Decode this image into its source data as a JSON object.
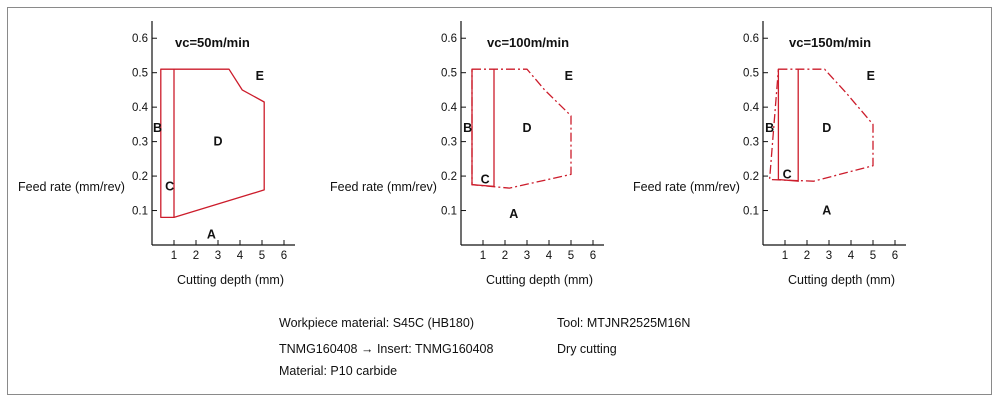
{
  "chart_data": [
    {
      "type": "area",
      "title": "vc=50m/min",
      "xlabel": "Cutting depth (mm)",
      "ylabel": "Feed rate (mm/rev)",
      "xlim": [
        0,
        6.5
      ],
      "ylim": [
        0,
        0.65
      ],
      "xticks": [
        "1",
        "2",
        "3",
        "4",
        "5",
        "6"
      ],
      "yticks": [
        "0.1",
        "0.2",
        "0.3",
        "0.4",
        "0.5",
        "0.6"
      ],
      "line_style": "solid",
      "boundary_outer": [
        [
          0.4,
          0.08
        ],
        [
          0.4,
          0.51
        ],
        [
          3.5,
          0.51
        ],
        [
          4.1,
          0.45
        ],
        [
          5.1,
          0.415
        ],
        [
          5.1,
          0.16
        ],
        [
          1.0,
          0.08
        ]
      ],
      "boundary_inner": [
        [
          1.0,
          0.08
        ],
        [
          1.0,
          0.51
        ]
      ],
      "region_labels": [
        {
          "text": "B",
          "x": 0.25,
          "y": 0.34
        },
        {
          "text": "C",
          "x": 0.8,
          "y": 0.17
        },
        {
          "text": "D",
          "x": 3.0,
          "y": 0.3
        },
        {
          "text": "E",
          "x": 4.9,
          "y": 0.49
        },
        {
          "text": "A",
          "x": 2.7,
          "y": 0.03
        }
      ]
    },
    {
      "type": "area",
      "title": "vc=100m/min",
      "xlabel": "Cutting depth (mm)",
      "ylabel": "Feed rate (mm/rev)",
      "xlim": [
        0,
        6.5
      ],
      "ylim": [
        0,
        0.65
      ],
      "xticks": [
        "1",
        "2",
        "3",
        "4",
        "5",
        "6"
      ],
      "yticks": [
        "0.1",
        "0.2",
        "0.3",
        "0.4",
        "0.5",
        "0.6"
      ],
      "line_style": "dash-dot",
      "boundary_outer": [
        [
          0.5,
          0.51
        ],
        [
          3.0,
          0.51
        ],
        [
          3.8,
          0.45
        ],
        [
          5.0,
          0.375
        ],
        [
          5.0,
          0.205
        ],
        [
          2.2,
          0.165
        ],
        [
          0.5,
          0.175
        ]
      ],
      "boundary_inner": [
        [
          0.5,
          0.51
        ],
        [
          0.5,
          0.175
        ],
        [
          1.5,
          0.17
        ],
        [
          1.5,
          0.51
        ]
      ],
      "region_labels": [
        {
          "text": "B",
          "x": 0.3,
          "y": 0.34
        },
        {
          "text": "C",
          "x": 1.1,
          "y": 0.19
        },
        {
          "text": "D",
          "x": 3.0,
          "y": 0.34
        },
        {
          "text": "E",
          "x": 4.9,
          "y": 0.49
        },
        {
          "text": "A",
          "x": 2.4,
          "y": 0.09
        }
      ]
    },
    {
      "type": "area",
      "title": "vc=150m/min",
      "xlabel": "Cutting depth (mm)",
      "ylabel": "Feed rate (mm/rev)",
      "xlim": [
        0,
        6.5
      ],
      "ylim": [
        0,
        0.65
      ],
      "xticks": [
        "1",
        "2",
        "3",
        "4",
        "5",
        "6"
      ],
      "yticks": [
        "0.1",
        "0.2",
        "0.3",
        "0.4",
        "0.5",
        "0.6"
      ],
      "line_style": "dash-dot",
      "boundary_outer": [
        [
          0.7,
          0.51
        ],
        [
          2.8,
          0.51
        ],
        [
          3.8,
          0.44
        ],
        [
          5.0,
          0.35
        ],
        [
          5.0,
          0.23
        ],
        [
          2.3,
          0.185
        ],
        [
          0.3,
          0.19
        ]
      ],
      "boundary_inner": [
        [
          0.7,
          0.51
        ],
        [
          0.7,
          0.19
        ],
        [
          1.6,
          0.185
        ],
        [
          1.6,
          0.51
        ]
      ],
      "region_labels": [
        {
          "text": "B",
          "x": 0.3,
          "y": 0.34
        },
        {
          "text": "C",
          "x": 1.1,
          "y": 0.205
        },
        {
          "text": "D",
          "x": 2.9,
          "y": 0.34
        },
        {
          "text": "E",
          "x": 4.9,
          "y": 0.49
        },
        {
          "text": "A",
          "x": 2.9,
          "y": 0.1
        }
      ]
    }
  ],
  "notes": {
    "workpiece": "Workpiece material: S45C (HB180)",
    "tool": "Tool: MTJNR2525M16N",
    "insert": "TNMG160408 → Insert: TNMG160408",
    "dry": "Dry cutting",
    "material": "Material: P10 carbide"
  },
  "colors": {
    "boundary": "#cc1c2b",
    "axis": "#111111",
    "frame": "#8a8a8a"
  }
}
